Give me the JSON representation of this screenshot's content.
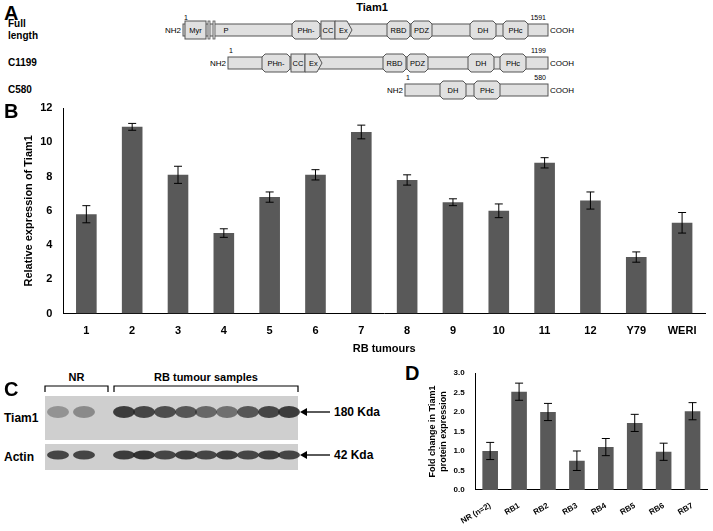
{
  "panel_labels": [
    "A",
    "B",
    "C",
    "D"
  ],
  "diagram": {
    "title": "Tiam1",
    "rows": [
      {
        "label": "Full length",
        "start": 1,
        "end": 1591,
        "n_term": "NH2",
        "c_term": "COOH",
        "domains": [
          "Myr",
          "P",
          "PHn-",
          "CC",
          "Ex",
          "RBD",
          "PDZ",
          "DH",
          "PHc"
        ]
      },
      {
        "label": "C1199",
        "start": 1,
        "end": 1199,
        "n_term": "NH2",
        "c_term": "COOH",
        "domains": [
          "PHn-",
          "CC",
          "Ex",
          "RBD",
          "PDZ",
          "DH",
          "PHc"
        ]
      },
      {
        "label": "C580",
        "start": 1,
        "end": 580,
        "n_term": "NH2",
        "c_term": "COOH",
        "domains": [
          "DH",
          "PHc"
        ]
      }
    ]
  },
  "chart_data": [
    {
      "type": "bar",
      "xlabel": "RB tumours",
      "ylabel": "Relative expression of Tiam1",
      "categories": [
        "1",
        "2",
        "3",
        "4",
        "5",
        "6",
        "7",
        "8",
        "9",
        "10",
        "11",
        "12",
        "Y79",
        "WERI"
      ],
      "values": [
        5.8,
        10.9,
        8.1,
        4.7,
        6.8,
        8.1,
        10.6,
        7.8,
        6.5,
        6.0,
        8.8,
        6.6,
        3.3,
        5.3
      ],
      "errors": [
        0.5,
        0.2,
        0.5,
        0.25,
        0.3,
        0.3,
        0.4,
        0.3,
        0.2,
        0.4,
        0.3,
        0.5,
        0.3,
        0.6
      ],
      "color": "#595959",
      "ylim": [
        0,
        12
      ],
      "yticks": [
        0,
        2,
        4,
        6,
        8,
        10,
        12
      ],
      "grid": false
    },
    {
      "type": "bar",
      "ylabel": "Fold change in Tiam1 protein expression",
      "categories": [
        "NR (n=2)",
        "RB1",
        "RB2",
        "RB3",
        "RB4",
        "RB5",
        "RB6",
        "RB7"
      ],
      "values": [
        1.0,
        2.52,
        2.0,
        0.75,
        1.1,
        1.72,
        0.98,
        2.02
      ],
      "errors": [
        0.22,
        0.22,
        0.22,
        0.25,
        0.22,
        0.22,
        0.22,
        0.22
      ],
      "color": "#595959",
      "ylim": [
        0,
        3
      ],
      "yticks": [
        {
          "value": 0,
          "label": "0.0"
        },
        0.5,
        {
          "value": 1,
          "label": "1.0"
        },
        1.5,
        {
          "value": 2,
          "label": "2.0"
        },
        2.5,
        {
          "value": 3,
          "label": "3.0"
        }
      ],
      "grid": false
    }
  ],
  "blot": {
    "groups": [
      "NR",
      "RB tumour samples"
    ],
    "rows": [
      {
        "protein": "Tiam1",
        "size": "180 Kda"
      },
      {
        "protein": "Actin",
        "size": "42 Kda"
      }
    ]
  }
}
